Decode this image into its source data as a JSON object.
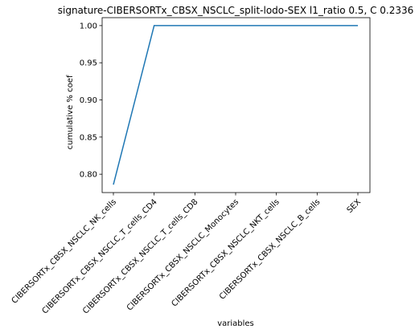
{
  "chart_data": {
    "type": "line",
    "title": "signature-CIBERSORTx_CBSX_NSCLC_split-lodo-SEX l1_ratio 0.5, C 0.2336",
    "xlabel": "variables",
    "ylabel": "cumulative % coef",
    "categories": [
      "CIBERSORTx_CBSX_NSCLC_NK_cells",
      "CIBERSORTx_CBSX_NSCLC_T_cells_CD4",
      "CIBERSORTx_CBSX_NSCLC_T_cells_CD8",
      "CIBERSORTx_CBSX_NSCLC_Monocytes",
      "CIBERSORTx_CBSX_NSCLC_NKT_cells",
      "CIBERSORTx_CBSX_NSCLC_B_cells",
      "SEX"
    ],
    "series": [
      {
        "values": [
          0.786,
          1.0,
          1.0,
          1.0,
          1.0,
          1.0,
          1.0
        ],
        "color": "#1f77b4"
      }
    ],
    "yticks": [
      "0.80",
      "0.85",
      "0.90",
      "0.95",
      "1.00"
    ],
    "ytick_values": [
      0.8,
      0.85,
      0.9,
      0.95,
      1.0
    ],
    "ylim": [
      0.7753,
      1.0107
    ],
    "grid": false
  }
}
